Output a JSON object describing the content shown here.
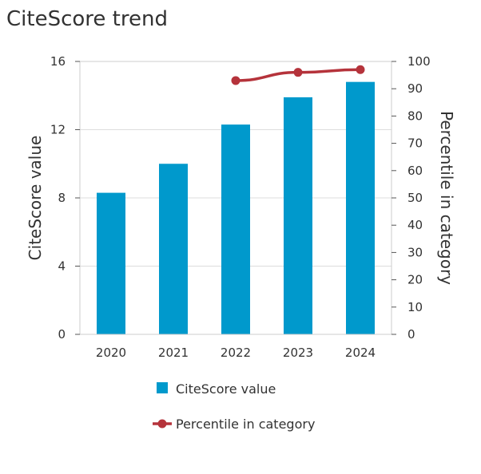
{
  "chart_data": {
    "type": "bar",
    "title": "CiteScore trend",
    "categories": [
      "2020",
      "2021",
      "2022",
      "2023",
      "2024"
    ],
    "series": [
      {
        "name": "CiteScore value",
        "type": "bar",
        "axis": "left",
        "values": [
          8.3,
          10.0,
          12.3,
          13.9,
          14.8
        ]
      },
      {
        "name": "Percentile in category",
        "type": "line",
        "axis": "right",
        "values": [
          null,
          null,
          93,
          96,
          97
        ]
      }
    ],
    "ylabel": "CiteScore value",
    "y2label": "Percentile in category",
    "ylim": [
      0,
      16
    ],
    "y2lim": [
      0,
      100
    ],
    "yticks": [
      "0",
      "4",
      "8",
      "12",
      "16"
    ],
    "y2ticks": [
      "0",
      "10",
      "20",
      "30",
      "40",
      "50",
      "60",
      "70",
      "80",
      "90",
      "100"
    ],
    "grid": true,
    "legend_position": "bottom",
    "colors": {
      "bar": "#0099cc",
      "line": "#b5333b",
      "grid": "#dddddd",
      "frame": "#cccccc"
    }
  }
}
